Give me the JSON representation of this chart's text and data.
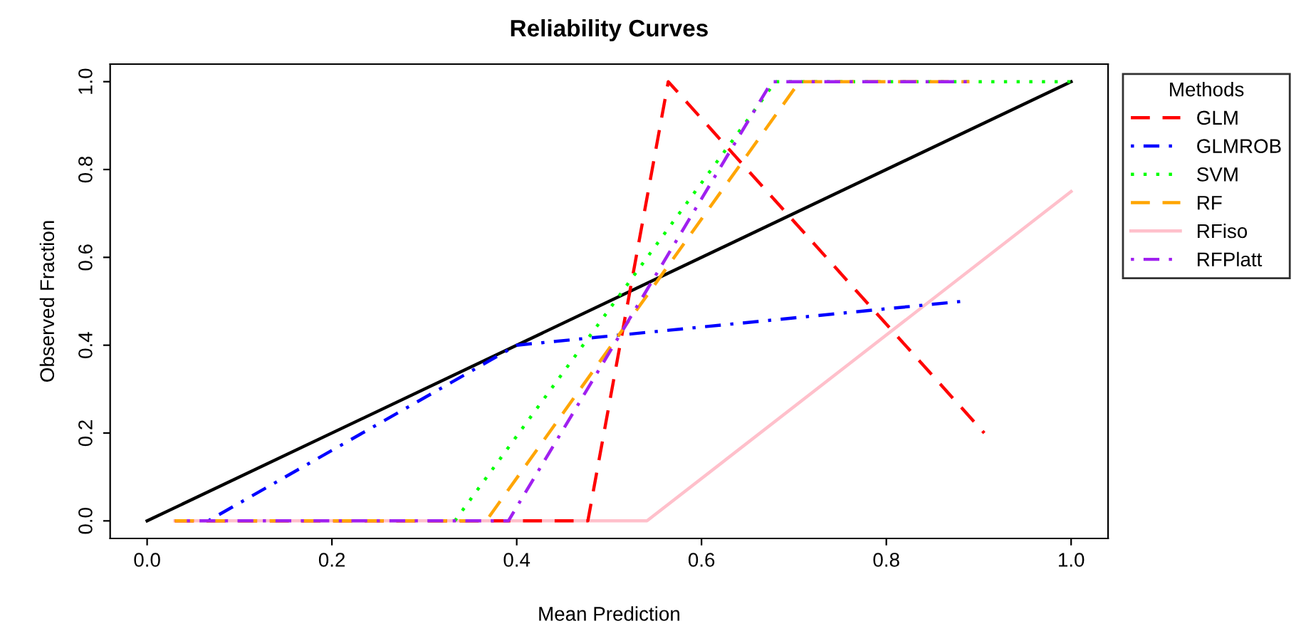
{
  "chart_data": {
    "type": "line",
    "title": "Reliability Curves",
    "xlabel": "Mean Prediction",
    "ylabel": "Observed Fraction",
    "legend_title": "Methods",
    "legend": "right",
    "grid": false,
    "xlim": [
      -0.04,
      1.04
    ],
    "ylim": [
      -0.04,
      1.04
    ],
    "xticks": [
      {
        "value": 0,
        "label": "0.0"
      },
      0.2,
      0.4,
      0.6,
      0.8,
      {
        "value": 1,
        "label": "1.0"
      }
    ],
    "yticks": [
      {
        "value": 0,
        "label": "0.0"
      },
      0.2,
      0.4,
      0.6,
      0.8,
      {
        "value": 1,
        "label": "1.0"
      }
    ],
    "series": [
      {
        "color": "#000000",
        "line_style": "solid",
        "x": [
          0,
          1
        ],
        "values": [
          0,
          1
        ]
      },
      {
        "name": "GLM",
        "color": "#ff0000",
        "line_style": "dashed",
        "x": [
          0.03,
          0.477,
          0.564,
          0.906
        ],
        "values": [
          0,
          0,
          1,
          0.2
        ]
      },
      {
        "name": "GLMROB",
        "color": "#0000ff",
        "line_style": "dashdot",
        "x": [
          0.066,
          0.4,
          0.883
        ],
        "values": [
          0,
          0.4,
          0.5
        ]
      },
      {
        "name": "SVM",
        "color": "#00ff00",
        "line_style": "dotted",
        "x": [
          0.333,
          0.68,
          1.0
        ],
        "values": [
          0,
          1,
          1
        ]
      },
      {
        "name": "RF",
        "color": "#ffa500",
        "line_style": "dashed",
        "x": [
          0.03,
          0.367,
          0.706,
          0.89
        ],
        "values": [
          0,
          0,
          1,
          1
        ]
      },
      {
        "name": "RFiso",
        "color": "#ffc0cb",
        "line_style": "solid",
        "x": [
          0.03,
          0.541,
          1.0
        ],
        "values": [
          0,
          0,
          0.75
        ]
      },
      {
        "name": "RFPlatt",
        "color": "#a020f0",
        "line_style": "dashdot",
        "x": [
          0.043,
          0.391,
          0.676,
          0.891
        ],
        "values": [
          0,
          0,
          1,
          1
        ]
      }
    ]
  }
}
